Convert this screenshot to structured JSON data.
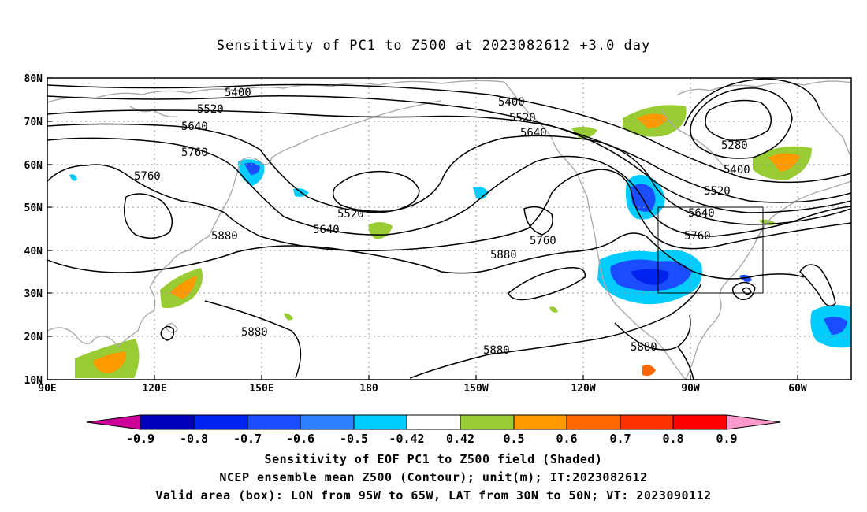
{
  "title": "Sensitivity of PC1 to Z500 at 2023082612 +3.0 day",
  "lat_labels": [
    "80N",
    "70N",
    "60N",
    "50N",
    "40N",
    "30N",
    "20N",
    "10N"
  ],
  "lon_labels": [
    "90E",
    "120E",
    "150E",
    "180",
    "150W",
    "120W",
    "90W",
    "60W"
  ],
  "contours": [
    {
      "label": "5400"
    },
    {
      "label": "5520"
    },
    {
      "label": "5640"
    },
    {
      "label": "5760"
    },
    {
      "label": "5760"
    },
    {
      "label": "5400"
    },
    {
      "label": "5520"
    },
    {
      "label": "5640"
    },
    {
      "label": "5280"
    },
    {
      "label": "5400"
    },
    {
      "label": "5520"
    },
    {
      "label": "5640"
    },
    {
      "label": "5760"
    },
    {
      "label": "5520"
    },
    {
      "label": "5640"
    },
    {
      "label": "5760"
    },
    {
      "label": "5880"
    },
    {
      "label": "5880"
    },
    {
      "label": "5880"
    },
    {
      "label": "5880"
    },
    {
      "label": "5880"
    }
  ],
  "colorbar": {
    "ticks": [
      "-0.9",
      "-0.8",
      "-0.7",
      "-0.6",
      "-0.5",
      "-0.42",
      "0.42",
      "0.5",
      "0.6",
      "0.7",
      "0.8",
      "0.9"
    ],
    "colors": [
      "#cc0099",
      "#0000bb",
      "#0022ee",
      "#1a4dff",
      "#2a80ff",
      "#00ccff",
      "#ffffff",
      "#99cc33",
      "#ff9900",
      "#ff6600",
      "#ff3300",
      "#ff0000",
      "#ff99cc"
    ]
  },
  "valid_box": {
    "lon_range": [
      "95W",
      "65W"
    ],
    "lat_range": [
      "30N",
      "50N"
    ]
  },
  "caption": {
    "line1": "Sensitivity of EOF PC1 to Z500 field (Shaded)",
    "line2": "NCEP ensemble mean Z500 (Contour); unit(m); IT:2023082612",
    "line3": "Valid area (box): LON from 95W to 65W, LAT from 30N to 50N; VT: 2023090112"
  }
}
